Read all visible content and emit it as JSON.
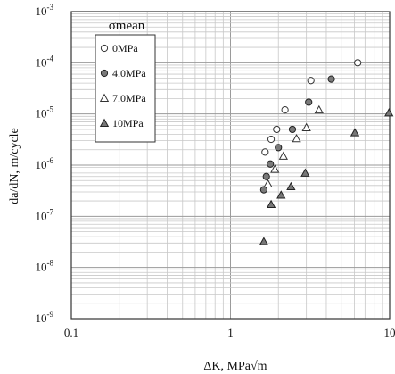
{
  "chart_data": {
    "type": "scatter",
    "title": "",
    "xlabel": "ΔK, MPa√m",
    "ylabel": "da/dN, m/cycle",
    "xscale": "log",
    "yscale": "log",
    "xlim": [
      0.1,
      10
    ],
    "ylim": [
      1e-09,
      0.001
    ],
    "grid": true,
    "legend": {
      "position": "top-left",
      "title": "σmean"
    },
    "x_tick_labels": [
      "0.1",
      "1",
      "10"
    ],
    "y_tick_labels": [
      {
        "base": "10",
        "exp": "-9"
      },
      {
        "base": "10",
        "exp": "-8"
      },
      {
        "base": "10",
        "exp": "-7"
      },
      {
        "base": "10",
        "exp": "-6"
      },
      {
        "base": "10",
        "exp": "-5"
      },
      {
        "base": "10",
        "exp": "-4"
      },
      {
        "base": "10",
        "exp": "-3"
      }
    ],
    "series": [
      {
        "name": "0MPa",
        "marker": "circle-open",
        "color": "#ffffff",
        "stroke": "#333333",
        "points": [
          {
            "x": 1.65,
            "y": 1.8e-06
          },
          {
            "x": 1.8,
            "y": 3.2e-06
          },
          {
            "x": 1.95,
            "y": 5e-06
          },
          {
            "x": 2.2,
            "y": 1.2e-05
          },
          {
            "x": 3.2,
            "y": 4.5e-05
          },
          {
            "x": 6.3,
            "y": 0.0001
          }
        ]
      },
      {
        "name": "4.0MPa",
        "marker": "circle-filled",
        "color": "#7a7a7a",
        "stroke": "#222222",
        "points": [
          {
            "x": 1.62,
            "y": 3.3e-07
          },
          {
            "x": 1.68,
            "y": 6e-07
          },
          {
            "x": 1.78,
            "y": 1.05e-06
          },
          {
            "x": 2.0,
            "y": 2.2e-06
          },
          {
            "x": 2.45,
            "y": 5e-06
          },
          {
            "x": 3.1,
            "y": 1.7e-05
          },
          {
            "x": 4.3,
            "y": 4.8e-05
          }
        ]
      },
      {
        "name": "7.0MPa",
        "marker": "triangle-open",
        "color": "#ffffff",
        "stroke": "#333333",
        "points": [
          {
            "x": 1.72,
            "y": 4.3e-07
          },
          {
            "x": 1.9,
            "y": 8.3e-07
          },
          {
            "x": 2.15,
            "y": 1.5e-06
          },
          {
            "x": 2.6,
            "y": 3.3e-06
          },
          {
            "x": 3.0,
            "y": 5.4e-06
          },
          {
            "x": 3.6,
            "y": 1.2e-05
          }
        ]
      },
      {
        "name": "10MPa",
        "marker": "triangle-filled",
        "color": "#777777",
        "stroke": "#222222",
        "points": [
          {
            "x": 1.62,
            "y": 3.2e-08
          },
          {
            "x": 1.8,
            "y": 1.7e-07
          },
          {
            "x": 2.08,
            "y": 2.6e-07
          },
          {
            "x": 2.4,
            "y": 3.8e-07
          },
          {
            "x": 2.95,
            "y": 7e-07
          },
          {
            "x": 6.05,
            "y": 4.3e-06
          },
          {
            "x": 9.9,
            "y": 1.05e-05
          }
        ]
      }
    ]
  }
}
